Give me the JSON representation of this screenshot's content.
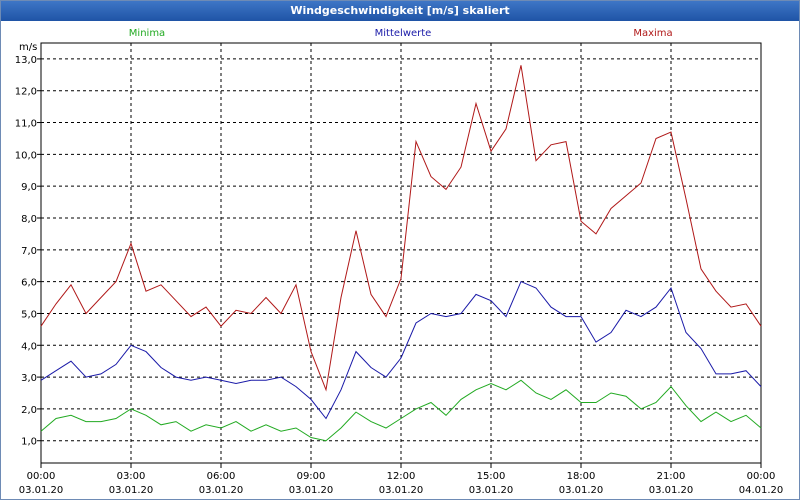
{
  "chart_data": {
    "type": "line",
    "title": "Windgeschwindigkeit [m/s] skaliert",
    "ylabel": "m/s",
    "ylim": [
      0.3,
      13.5
    ],
    "xlim_hours": [
      0,
      24
    ],
    "yticks": [
      "1,0",
      "2,0",
      "3,0",
      "4,0",
      "5,0",
      "6,0",
      "7,0",
      "8,0",
      "9,0",
      "10,0",
      "11,0",
      "12,0",
      "13,0"
    ],
    "xticks": [
      {
        "time": "00:00",
        "date": "03.01.20"
      },
      {
        "time": "03:00",
        "date": "03.01.20"
      },
      {
        "time": "06:00",
        "date": "03.01.20"
      },
      {
        "time": "09:00",
        "date": "03.01.20"
      },
      {
        "time": "12:00",
        "date": "03.01.20"
      },
      {
        "time": "15:00",
        "date": "03.01.20"
      },
      {
        "time": "18:00",
        "date": "03.01.20"
      },
      {
        "time": "21:00",
        "date": "03.01.20"
      },
      {
        "time": "00:00",
        "date": "04.01.20"
      }
    ],
    "series": [
      {
        "name": "Minima",
        "color": "#22aa22",
        "x": [
          0,
          0.5,
          1,
          1.5,
          2,
          2.5,
          3,
          3.5,
          4,
          4.5,
          5,
          5.5,
          6,
          6.5,
          7,
          7.5,
          8,
          8.5,
          9,
          9.5,
          10,
          10.5,
          11,
          11.5,
          12,
          12.5,
          13,
          13.5,
          14,
          14.5,
          15,
          15.5,
          16,
          16.5,
          17,
          17.5,
          18,
          18.5,
          19,
          19.5,
          20,
          20.5,
          21,
          21.5,
          22,
          22.5,
          23,
          23.5,
          24
        ],
        "values": [
          1.3,
          1.7,
          1.8,
          1.6,
          1.6,
          1.7,
          2.0,
          1.8,
          1.5,
          1.6,
          1.3,
          1.5,
          1.4,
          1.6,
          1.3,
          1.5,
          1.3,
          1.4,
          1.1,
          1.0,
          1.4,
          1.9,
          1.6,
          1.4,
          1.7,
          2.0,
          2.2,
          1.8,
          2.3,
          2.6,
          2.8,
          2.6,
          2.9,
          2.5,
          2.3,
          2.6,
          2.2,
          2.2,
          2.5,
          2.4,
          2.0,
          2.2,
          2.7,
          2.1,
          1.6,
          1.9,
          1.6,
          1.8,
          1.4
        ]
      },
      {
        "name": "Mittelwerte",
        "color": "#1a1aa8",
        "x": [
          0,
          0.5,
          1,
          1.5,
          2,
          2.5,
          3,
          3.5,
          4,
          4.5,
          5,
          5.5,
          6,
          6.5,
          7,
          7.5,
          8,
          8.5,
          9,
          9.5,
          10,
          10.5,
          11,
          11.5,
          12,
          12.5,
          13,
          13.5,
          14,
          14.5,
          15,
          15.5,
          16,
          16.5,
          17,
          17.5,
          18,
          18.5,
          19,
          19.5,
          20,
          20.5,
          21,
          21.5,
          22,
          22.5,
          23,
          23.5,
          24
        ],
        "values": [
          2.9,
          3.2,
          3.5,
          3.0,
          3.1,
          3.4,
          4.0,
          3.8,
          3.3,
          3.0,
          2.9,
          3.0,
          2.9,
          2.8,
          2.9,
          2.9,
          3.0,
          2.7,
          2.3,
          1.7,
          2.6,
          3.8,
          3.3,
          3.0,
          3.6,
          4.7,
          5.0,
          4.9,
          5.0,
          5.6,
          5.4,
          4.9,
          6.0,
          5.8,
          5.2,
          4.9,
          4.9,
          4.1,
          4.4,
          5.1,
          4.9,
          5.2,
          5.8,
          4.4,
          3.9,
          3.1,
          3.1,
          3.2,
          2.7
        ]
      },
      {
        "name": "Maxima",
        "color": "#b01818",
        "x": [
          0,
          0.5,
          1,
          1.5,
          2,
          2.5,
          3,
          3.5,
          4,
          4.5,
          5,
          5.5,
          6,
          6.5,
          7,
          7.5,
          8,
          8.5,
          9,
          9.5,
          10,
          10.5,
          11,
          11.5,
          12,
          12.5,
          13,
          13.5,
          14,
          14.5,
          15,
          15.5,
          16,
          16.5,
          17,
          17.5,
          18,
          18.5,
          19,
          19.5,
          20,
          20.5,
          21,
          21.5,
          22,
          22.5,
          23,
          23.5,
          24
        ],
        "values": [
          4.6,
          5.3,
          5.9,
          5.0,
          5.5,
          6.0,
          7.2,
          5.7,
          5.9,
          5.4,
          4.9,
          5.2,
          4.6,
          5.1,
          5.0,
          5.5,
          5.0,
          5.9,
          3.8,
          2.6,
          5.5,
          7.6,
          5.6,
          4.9,
          6.1,
          10.4,
          9.3,
          8.9,
          9.6,
          11.6,
          10.1,
          10.8,
          12.8,
          9.8,
          10.3,
          10.4,
          7.9,
          7.5,
          8.3,
          8.7,
          9.1,
          10.5,
          10.7,
          8.6,
          6.4,
          5.7,
          5.2,
          5.3,
          4.6
        ]
      }
    ]
  }
}
